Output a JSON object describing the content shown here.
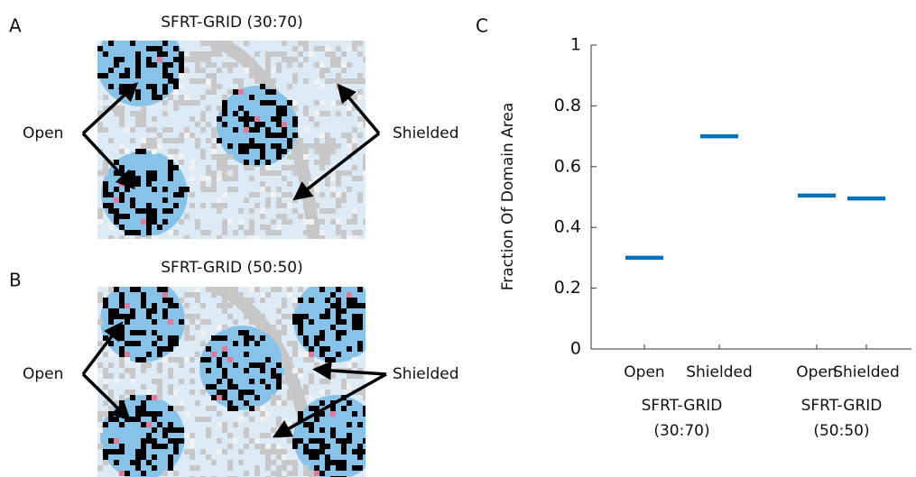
{
  "panels": [
    {
      "letter": "A",
      "title": "SFRT-GRID (30:70)",
      "left_label": "Open",
      "right_label": "Shielded"
    },
    {
      "letter": "B",
      "title": "SFRT-GRID (50:50)",
      "left_label": "Open",
      "right_label": "Shielded"
    }
  ],
  "chart_data": {
    "type": "scatter",
    "marker": "hline",
    "letter": "C",
    "ylabel": "Fraction Of Domain Area",
    "categories": [
      "Open",
      "Shielded",
      "Open",
      "Shielded"
    ],
    "groups": [
      {
        "lines": [
          "SFRT-GRID",
          "(30:70)"
        ]
      },
      {
        "lines": [
          "SFRT-GRID",
          "(50:50)"
        ]
      }
    ],
    "values": [
      0.3,
      0.7,
      0.505,
      0.495
    ],
    "color": "#0072bd",
    "ylim": [
      0,
      1
    ],
    "yticks": [
      0,
      0.2,
      0.4,
      0.6,
      0.8,
      1
    ]
  }
}
